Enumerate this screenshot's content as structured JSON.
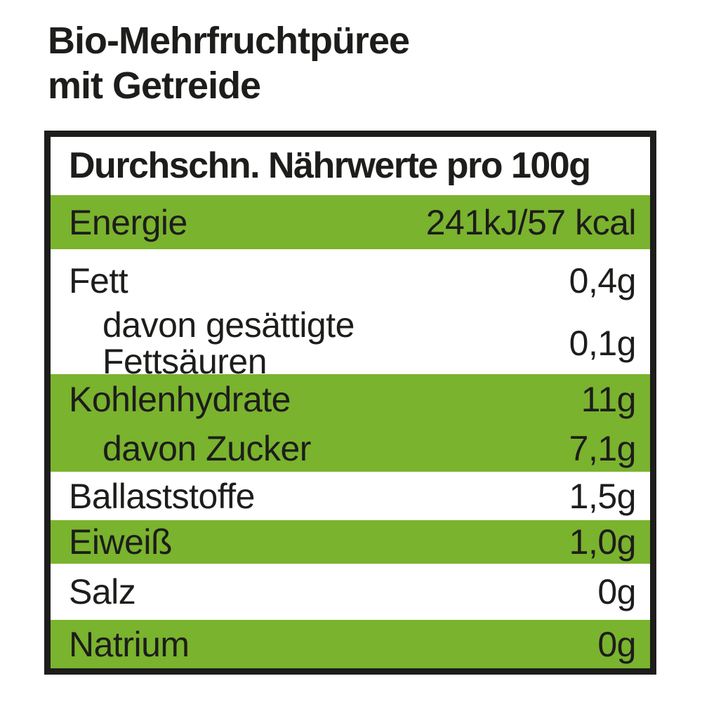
{
  "page": {
    "title_line1": "Bio-Mehrfruchtpüree",
    "title_line2": "mit Getreide"
  },
  "table": {
    "header": "Durchschn. Nährwerte pro 100g",
    "rows": [
      {
        "label": "Energie",
        "value": "241kJ/57 kcal"
      },
      {
        "label": "Fett",
        "value": "0,4g"
      },
      {
        "label": "davon gesättigte\nFettsäuren",
        "value": "0,1g"
      },
      {
        "label": "Kohlenhydrate",
        "value": "11g"
      },
      {
        "label": "davon Zucker",
        "value": "7,1g"
      },
      {
        "label": "Ballaststoffe",
        "value": "1,5g"
      },
      {
        "label": "Eiweiß",
        "value": "1,0g"
      },
      {
        "label": "Salz",
        "value": "0g"
      },
      {
        "label": "Natrium",
        "value": "0g"
      }
    ]
  },
  "colors": {
    "accent_green": "#7ab32e",
    "text_black": "#1d1d1b",
    "row_white": "#ffffff"
  }
}
